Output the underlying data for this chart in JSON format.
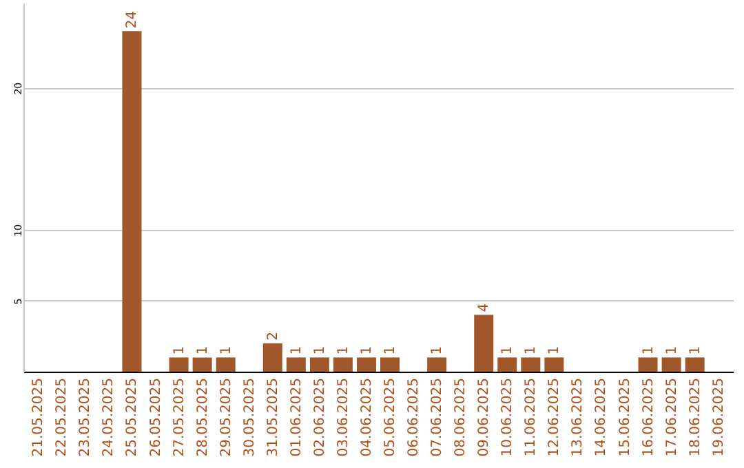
{
  "chart_data": {
    "type": "bar",
    "categories": [
      "21.05.2025",
      "22.05.2025",
      "23.05.2025",
      "24.05.2025",
      "25.05.2025",
      "26.05.2025",
      "27.05.2025",
      "28.05.2025",
      "29.05.2025",
      "30.05.2025",
      "31.05.2025",
      "01.06.2025",
      "02.06.2025",
      "03.06.2025",
      "04.06.2025",
      "05.06.2025",
      "06.06.2025",
      "07.06.2025",
      "08.06.2025",
      "09.06.2025",
      "10.06.2025",
      "11.06.2025",
      "12.06.2025",
      "13.06.2025",
      "14.06.2025",
      "15.06.2025",
      "16.06.2025",
      "17.06.2025",
      "18.06.2025",
      "19.06.2025"
    ],
    "values": [
      0,
      0,
      0,
      0,
      24,
      0,
      1,
      1,
      1,
      0,
      2,
      1,
      1,
      1,
      1,
      1,
      0,
      1,
      0,
      4,
      1,
      1,
      1,
      0,
      0,
      0,
      1,
      1,
      1,
      0
    ],
    "value_labels": [
      null,
      null,
      null,
      null,
      "24",
      null,
      "1",
      "1",
      "1",
      null,
      "2",
      "1",
      "1",
      "1",
      "1",
      "1",
      null,
      "1",
      null,
      "4",
      "1",
      "1",
      "1",
      null,
      null,
      null,
      "1",
      "1",
      "1",
      null
    ],
    "color": "#a0582a",
    "ylim": [
      0,
      26
    ],
    "yticks": [
      5,
      10,
      20
    ],
    "grid": "y"
  }
}
